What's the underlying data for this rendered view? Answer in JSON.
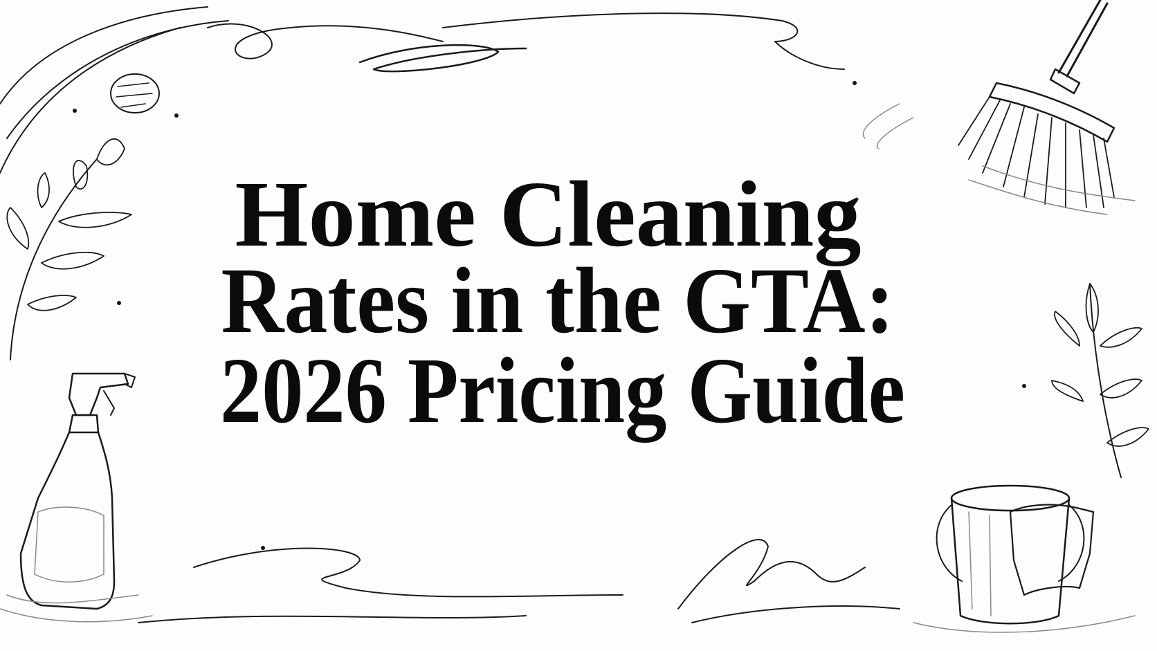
{
  "title": {
    "lines": [
      "Home Cleaning",
      "Rates in the GTA:",
      "2026 Pricing Guide"
    ]
  }
}
